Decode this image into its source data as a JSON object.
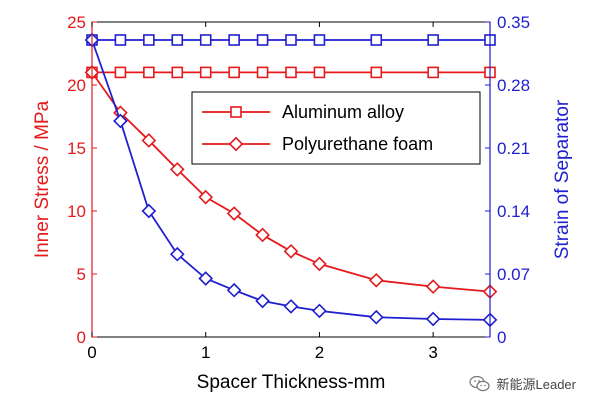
{
  "chart_data": {
    "type": "line",
    "x": [
      0,
      0.25,
      0.5,
      0.75,
      1.0,
      1.25,
      1.5,
      1.75,
      2.0,
      2.5,
      3.0,
      3.5
    ],
    "xlabel": "Spacer Thickness-mm",
    "xlim": [
      0,
      3.5
    ],
    "xticks": [
      0,
      1,
      2,
      3
    ],
    "ylabel_left": "Inner Stress / MPa",
    "ylim_left": [
      0,
      25
    ],
    "yticks_left": [
      0,
      5,
      10,
      15,
      20,
      25
    ],
    "ylabel_right": "Strain of Separator",
    "ylim_right": [
      0,
      0.35
    ],
    "yticks_right": [
      "0",
      "0.07",
      "0.14",
      "0.21",
      "0.28",
      "0.35"
    ],
    "legend_position": "top-right",
    "series": [
      {
        "name": "Aluminum alloy",
        "axis": "left",
        "marker": "square",
        "color": "#e41a1c",
        "values": [
          21.0,
          21.0,
          21.0,
          21.0,
          21.0,
          21.0,
          21.0,
          21.0,
          21.0,
          21.0,
          21.0,
          21.0
        ]
      },
      {
        "name": "Polyurethane foam",
        "axis": "left",
        "marker": "diamond",
        "color": "#e41a1c",
        "values": [
          21.0,
          17.8,
          15.6,
          13.3,
          11.1,
          9.8,
          8.1,
          6.8,
          5.8,
          4.5,
          4.0,
          3.6
        ]
      },
      {
        "axis": "right",
        "marker": "square",
        "color": "#1f1fcf",
        "values": [
          0.33,
          0.33,
          0.33,
          0.33,
          0.33,
          0.33,
          0.33,
          0.33,
          0.33,
          0.33,
          0.33,
          0.33
        ]
      },
      {
        "axis": "right",
        "marker": "diamond",
        "color": "#1f1fcf",
        "values": [
          0.33,
          0.24,
          0.14,
          0.092,
          0.065,
          0.052,
          0.04,
          0.034,
          0.029,
          0.022,
          0.02,
          0.019
        ]
      }
    ]
  },
  "watermark": {
    "text": "新能源Leader"
  }
}
